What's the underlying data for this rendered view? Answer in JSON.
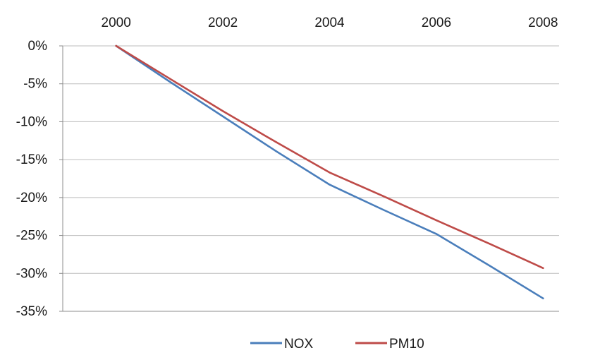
{
  "chart_data": {
    "type": "line",
    "title": "",
    "xlabel": "",
    "ylabel": "",
    "x": [
      2000,
      2001,
      2002,
      2003,
      2004,
      2005,
      2006,
      2007,
      2008
    ],
    "x_ticks": [
      {
        "value": 2000,
        "label": "2000"
      },
      {
        "value": 2002,
        "label": "2002"
      },
      {
        "value": 2004,
        "label": "2004"
      },
      {
        "value": 2006,
        "label": "2006"
      },
      {
        "value": 2008,
        "label": "2008"
      }
    ],
    "xlim": [
      1999.0,
      2008.3
    ],
    "x_axis_position": "top",
    "y_ticks": [
      {
        "value": 0,
        "label": "0%"
      },
      {
        "value": -5,
        "label": "-5%"
      },
      {
        "value": -10,
        "label": "-10%"
      },
      {
        "value": -15,
        "label": "-15%"
      },
      {
        "value": -20,
        "label": "-20%"
      },
      {
        "value": -25,
        "label": "-25%"
      },
      {
        "value": -30,
        "label": "-30%"
      },
      {
        "value": -35,
        "label": "-35%"
      }
    ],
    "ylim": [
      -35,
      0
    ],
    "y_unit": "%",
    "grid": "horizontal",
    "legend_position": "bottom",
    "series": [
      {
        "name": "NOX",
        "color": "#4a7ebb",
        "values": [
          0,
          -4.7,
          -9.3,
          -13.9,
          -18.3,
          -21.6,
          -24.8,
          -29.0,
          -33.3
        ]
      },
      {
        "name": "PM10",
        "color": "#be4b48",
        "values": [
          0,
          -4.3,
          -8.6,
          -12.7,
          -16.7,
          -19.8,
          -23.0,
          -26.1,
          -29.3
        ]
      }
    ]
  }
}
